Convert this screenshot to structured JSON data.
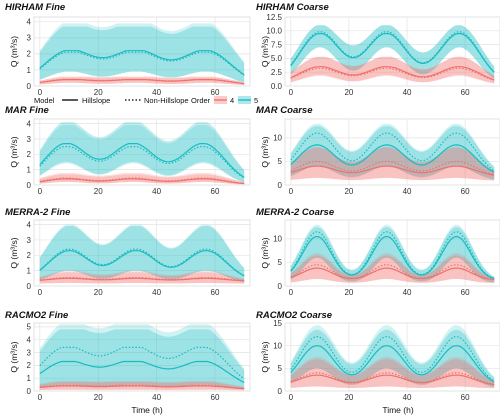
{
  "figure": {
    "xlabel": "Time (h)"
  },
  "legend": {
    "model_title": "Model",
    "model_items": [
      "Hillslope",
      "Non-Hillslope"
    ],
    "order_title": "Order",
    "order_items": [
      "4",
      "5"
    ]
  },
  "colors": {
    "order4": "#f0716c",
    "order5": "#18bcc2",
    "grid": "#e3e3e3",
    "panel_bg": "#ffffff"
  },
  "chart_data": [
    {
      "type": "line",
      "title": "HIRHAM Fine",
      "ylabel": "Q (m³/s)",
      "xlim": [
        -2,
        72
      ],
      "ylim": [
        0,
        4.3
      ],
      "xticks": [
        0,
        20,
        40,
        60
      ],
      "yticks": [
        0,
        1,
        2,
        3,
        4
      ],
      "peaks": [
        10,
        33,
        57
      ],
      "width": 8.5,
      "base": 0.03,
      "series": [
        {
          "name": "4",
          "model": "Hillslope",
          "peak": 0.4,
          "band": [
            0.2,
            0.55
          ]
        },
        {
          "name": "4",
          "model": "Non-Hillslope",
          "peak": 0.42,
          "band": [
            0.2,
            0.6
          ]
        },
        {
          "name": "5",
          "model": "Hillslope",
          "peak": 2.2,
          "band": [
            0.9,
            3.7
          ]
        },
        {
          "name": "5",
          "model": "Non-Hillslope",
          "peak": 2.1,
          "band": [
            0.9,
            3.9
          ]
        }
      ]
    },
    {
      "type": "line",
      "title": "HIRHAM Coarse",
      "ylabel": "Q (m³/s)",
      "xlim": [
        -2,
        72
      ],
      "ylim": [
        0,
        12.5
      ],
      "xticks": [
        0,
        20,
        40,
        60
      ],
      "yticks": [
        0,
        2.5,
        5,
        7.5,
        10,
        12.5
      ],
      "ytick_labels": [
        "0.0",
        "2.5",
        "5.0",
        "7.5",
        "10.0",
        "12.5"
      ],
      "peaks": [
        10,
        33,
        58
      ],
      "width": 7,
      "base": 0.4,
      "series": [
        {
          "name": "4",
          "model": "Hillslope",
          "peak": 3.5,
          "band": [
            2.0,
            5.3
          ]
        },
        {
          "name": "4",
          "model": "Non-Hillslope",
          "peak": 3.2,
          "band": [
            1.8,
            5.3
          ]
        },
        {
          "name": "5",
          "model": "Hillslope",
          "peak": 9.5,
          "band": [
            7.0,
            11.0
          ]
        },
        {
          "name": "5",
          "model": "Non-Hillslope",
          "peak": 9.8,
          "band": [
            7.0,
            11.0
          ]
        }
      ]
    },
    {
      "type": "line",
      "title": "MAR Fine",
      "ylabel": "Q (m³/s)",
      "xlim": [
        -2,
        72
      ],
      "ylim": [
        0,
        4.3
      ],
      "xticks": [
        0,
        20,
        40,
        60
      ],
      "yticks": [
        0,
        1,
        2,
        3,
        4
      ],
      "peaks": [
        9,
        32,
        56
      ],
      "width": 7.5,
      "base": 0.03,
      "series": [
        {
          "name": "4",
          "model": "Hillslope",
          "peak": 0.4,
          "band": [
            0.2,
            0.7
          ]
        },
        {
          "name": "4",
          "model": "Non-Hillslope",
          "peak": 0.45,
          "band": [
            0.2,
            0.8
          ]
        },
        {
          "name": "5",
          "model": "Hillslope",
          "peak": 2.7,
          "band": [
            1.5,
            4.1
          ]
        },
        {
          "name": "5",
          "model": "Non-Hillslope",
          "peak": 2.5,
          "band": [
            1.4,
            3.9
          ]
        }
      ]
    },
    {
      "type": "line",
      "title": "MAR Coarse",
      "ylabel": "Q (m³/s)",
      "xlim": [
        -2,
        72
      ],
      "ylim": [
        0,
        14
      ],
      "xticks": [
        0,
        20,
        40,
        60
      ],
      "yticks": [
        0,
        5,
        10
      ],
      "peaks": [
        9,
        33,
        57
      ],
      "width": 6.5,
      "base": 1.8,
      "series": [
        {
          "name": "4",
          "model": "Hillslope",
          "peak": 4.0,
          "band": [
            1.5,
            8.0
          ]
        },
        {
          "name": "4",
          "model": "Non-Hillslope",
          "peak": 5.0,
          "band": [
            1.5,
            8.0
          ]
        },
        {
          "name": "5",
          "model": "Hillslope",
          "peak": 8.5,
          "band": [
            4.0,
            12.5
          ]
        },
        {
          "name": "5",
          "model": "Non-Hillslope",
          "peak": 11.0,
          "band": [
            4.0,
            13.0
          ]
        }
      ]
    },
    {
      "type": "line",
      "title": "MERRA-2 Fine",
      "ylabel": "Q (m³/s)",
      "xlim": [
        -2,
        72
      ],
      "ylim": [
        0,
        4.3
      ],
      "xticks": [
        0,
        20,
        40,
        60
      ],
      "yticks": [
        0,
        1,
        2,
        3,
        4
      ],
      "peaks": [
        10,
        33,
        57
      ],
      "width": 7,
      "base": 0.3,
      "series": [
        {
          "name": "4",
          "model": "Hillslope",
          "peak": 0.5,
          "band": [
            0.2,
            0.9
          ]
        },
        {
          "name": "4",
          "model": "Non-Hillslope",
          "peak": 0.55,
          "band": [
            0.2,
            1.0
          ]
        },
        {
          "name": "5",
          "model": "Hillslope",
          "peak": 2.3,
          "band": [
            1.0,
            3.9
          ]
        },
        {
          "name": "5",
          "model": "Non-Hillslope",
          "peak": 2.4,
          "band": [
            1.0,
            4.0
          ]
        }
      ]
    },
    {
      "type": "line",
      "title": "MERRA-2 Coarse",
      "ylabel": "Q (m³/s)",
      "xlim": [
        -2,
        72
      ],
      "ylim": [
        0,
        14
      ],
      "xticks": [
        0,
        20,
        40,
        60
      ],
      "yticks": [
        0,
        5,
        10
      ],
      "peaks": [
        9,
        33,
        57
      ],
      "width": 5,
      "base": 1.3,
      "series": [
        {
          "name": "4",
          "model": "Hillslope",
          "peak": 3.8,
          "band": [
            1.5,
            6.5
          ]
        },
        {
          "name": "4",
          "model": "Non-Hillslope",
          "peak": 4.5,
          "band": [
            1.5,
            7.0
          ]
        },
        {
          "name": "5",
          "model": "Hillslope",
          "peak": 10.5,
          "band": [
            6.0,
            12.5
          ]
        },
        {
          "name": "5",
          "model": "Non-Hillslope",
          "peak": 11.5,
          "band": [
            6.0,
            13.0
          ]
        }
      ]
    },
    {
      "type": "line",
      "title": "RACMO2 Fine",
      "ylabel": "Q (m³/s)",
      "xlim": [
        -2,
        72
      ],
      "ylim": [
        0,
        5.3
      ],
      "xticks": [
        0,
        20,
        40,
        60
      ],
      "yticks": [
        0,
        1,
        2,
        3,
        4,
        5
      ],
      "peaks": [
        9,
        32,
        56
      ],
      "width": 8.5,
      "base": 0.1,
      "series": [
        {
          "name": "4",
          "model": "Hillslope",
          "peak": 0.4,
          "band": [
            0.1,
            0.7
          ]
        },
        {
          "name": "4",
          "model": "Non-Hillslope",
          "peak": 0.45,
          "band": [
            0.1,
            0.8
          ]
        },
        {
          "name": "5",
          "model": "Hillslope",
          "peak": 2.3,
          "band": [
            0.5,
            4.8
          ]
        },
        {
          "name": "5",
          "model": "Non-Hillslope",
          "peak": 3.4,
          "band": [
            0.5,
            5.2
          ]
        }
      ]
    },
    {
      "type": "line",
      "title": "RACMO2 Coarse",
      "ylabel": "Q (m³/s)",
      "xlim": [
        -2,
        72
      ],
      "ylim": [
        0,
        15
      ],
      "xticks": [
        0,
        20,
        40,
        60
      ],
      "yticks": [
        0,
        5,
        10,
        15
      ],
      "peaks": [
        9,
        33,
        57
      ],
      "width": 6,
      "base": 1.2,
      "series": [
        {
          "name": "4",
          "model": "Hillslope",
          "peak": 3.5,
          "band": [
            1.0,
            7.0
          ]
        },
        {
          "name": "4",
          "model": "Non-Hillslope",
          "peak": 4.0,
          "band": [
            1.0,
            7.5
          ]
        },
        {
          "name": "5",
          "model": "Hillslope",
          "peak": 10.0,
          "band": [
            5.0,
            13.5
          ]
        },
        {
          "name": "5",
          "model": "Non-Hillslope",
          "peak": 12.0,
          "band": [
            5.0,
            14.5
          ]
        }
      ]
    }
  ]
}
